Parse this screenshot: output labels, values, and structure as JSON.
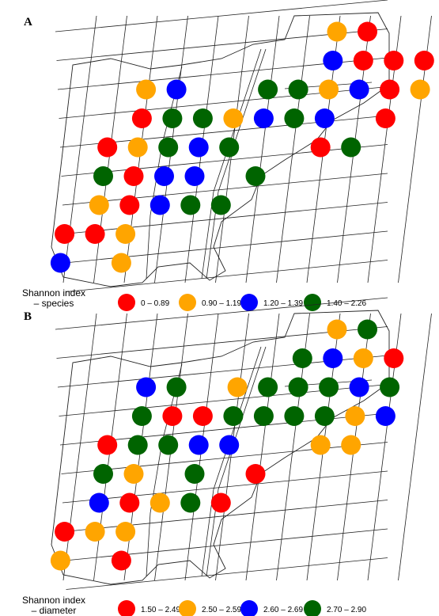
{
  "colors": {
    "red": "#ff0000",
    "orange": "#ffa500",
    "blue": "#0000ff",
    "green": "#006400"
  },
  "panel_a": {
    "letter": "A",
    "legend_title_line1": "Shannon index",
    "legend_title_line2": "– species",
    "legend": [
      {
        "label": "0 – 0.89",
        "color": "red"
      },
      {
        "label": "0.90 – 1.19",
        "color": "orange"
      },
      {
        "label": "1.20 – 1.39",
        "color": "blue"
      },
      {
        "label": "1.40 – 2.26",
        "color": "green"
      }
    ],
    "plots": [
      {
        "class": "orange",
        "row": 0,
        "col": 0
      },
      {
        "class": "red",
        "row": 0,
        "col": 1
      },
      {
        "class": "blue",
        "row": 1,
        "col": 0
      },
      {
        "class": "red",
        "row": 1,
        "col": 1
      },
      {
        "class": "red",
        "row": 1,
        "col": 2
      },
      {
        "class": "red",
        "row": 1,
        "col": 3
      },
      {
        "class": "orange",
        "row": 2,
        "col": 0
      },
      {
        "class": "blue",
        "row": 2,
        "col": 1
      },
      {
        "class": "red",
        "row": 2,
        "col": 2
      },
      {
        "class": "orange",
        "row": 2,
        "col": 3
      },
      {
        "class": "green",
        "row": 2,
        "col": -2
      },
      {
        "class": "green",
        "row": 2,
        "col": -1
      },
      {
        "class": "orange",
        "row": 2,
        "col": -6
      },
      {
        "class": "blue",
        "row": 2,
        "col": -5
      },
      {
        "class": "orange",
        "row": 3,
        "col": -3
      },
      {
        "class": "blue",
        "row": 3,
        "col": -2
      },
      {
        "class": "green",
        "row": 3,
        "col": -1
      },
      {
        "class": "blue",
        "row": 3,
        "col": 0
      },
      {
        "class": "red",
        "row": 3,
        "col": 2
      },
      {
        "class": "red",
        "row": 3,
        "col": -6
      },
      {
        "class": "green",
        "row": 3,
        "col": -5
      },
      {
        "class": "green",
        "row": 3,
        "col": -4
      },
      {
        "class": "red",
        "row": 4,
        "col": 0
      },
      {
        "class": "green",
        "row": 4,
        "col": 1
      },
      {
        "class": "red",
        "row": 4,
        "col": -7
      },
      {
        "class": "orange",
        "row": 4,
        "col": -6
      },
      {
        "class": "green",
        "row": 4,
        "col": -5
      },
      {
        "class": "blue",
        "row": 4,
        "col": -4
      },
      {
        "class": "green",
        "row": 4,
        "col": -3
      },
      {
        "class": "green",
        "row": 5,
        "col": -7
      },
      {
        "class": "red",
        "row": 5,
        "col": -6
      },
      {
        "class": "blue",
        "row": 5,
        "col": -5
      },
      {
        "class": "blue",
        "row": 5,
        "col": -4
      },
      {
        "class": "green",
        "row": 5,
        "col": -2
      },
      {
        "class": "orange",
        "row": 6,
        "col": -7
      },
      {
        "class": "red",
        "row": 6,
        "col": -6
      },
      {
        "class": "blue",
        "row": 6,
        "col": -5
      },
      {
        "class": "green",
        "row": 6,
        "col": -4
      },
      {
        "class": "green",
        "row": 6,
        "col": -3
      },
      {
        "class": "red",
        "row": 7,
        "col": -8
      },
      {
        "class": "red",
        "row": 7,
        "col": -7
      },
      {
        "class": "orange",
        "row": 7,
        "col": -6
      },
      {
        "class": "blue",
        "row": 8,
        "col": -8
      },
      {
        "class": "orange",
        "row": 8,
        "col": -6
      }
    ]
  },
  "panel_b": {
    "letter": "B",
    "legend_title_line1": "Shannon index",
    "legend_title_line2": "– diameter",
    "legend": [
      {
        "label": "1.50 – 2.49",
        "color": "red"
      },
      {
        "label": "2.50 – 2.59",
        "color": "orange"
      },
      {
        "label": "2.60 – 2.69",
        "color": "blue"
      },
      {
        "label": "2.70 – 2.90",
        "color": "green"
      }
    ],
    "plots": [
      {
        "class": "orange",
        "row": 0,
        "col": 0
      },
      {
        "class": "green",
        "row": 0,
        "col": 1
      },
      {
        "class": "green",
        "row": 1,
        "col": -1
      },
      {
        "class": "blue",
        "row": 1,
        "col": 0
      },
      {
        "class": "orange",
        "row": 1,
        "col": 1
      },
      {
        "class": "red",
        "row": 1,
        "col": 2
      },
      {
        "class": "blue",
        "row": 2,
        "col": -6
      },
      {
        "class": "green",
        "row": 2,
        "col": -5
      },
      {
        "class": "orange",
        "row": 2,
        "col": -3
      },
      {
        "class": "green",
        "row": 2,
        "col": -2
      },
      {
        "class": "green",
        "row": 2,
        "col": -1
      },
      {
        "class": "green",
        "row": 2,
        "col": 0
      },
      {
        "class": "blue",
        "row": 2,
        "col": 1
      },
      {
        "class": "green",
        "row": 2,
        "col": 2
      },
      {
        "class": "green",
        "row": 3,
        "col": -6
      },
      {
        "class": "red",
        "row": 3,
        "col": -5
      },
      {
        "class": "red",
        "row": 3,
        "col": -4
      },
      {
        "class": "green",
        "row": 3,
        "col": -3
      },
      {
        "class": "green",
        "row": 3,
        "col": -2
      },
      {
        "class": "green",
        "row": 3,
        "col": -1
      },
      {
        "class": "green",
        "row": 3,
        "col": 0
      },
      {
        "class": "orange",
        "row": 3,
        "col": 1
      },
      {
        "class": "blue",
        "row": 3,
        "col": 2
      },
      {
        "class": "red",
        "row": 4,
        "col": -7
      },
      {
        "class": "green",
        "row": 4,
        "col": -6
      },
      {
        "class": "green",
        "row": 4,
        "col": -5
      },
      {
        "class": "blue",
        "row": 4,
        "col": -4
      },
      {
        "class": "blue",
        "row": 4,
        "col": -3
      },
      {
        "class": "orange",
        "row": 4,
        "col": 0
      },
      {
        "class": "orange",
        "row": 4,
        "col": 1
      },
      {
        "class": "green",
        "row": 5,
        "col": -7
      },
      {
        "class": "orange",
        "row": 5,
        "col": -6
      },
      {
        "class": "green",
        "row": 5,
        "col": -4
      },
      {
        "class": "red",
        "row": 5,
        "col": -2
      },
      {
        "class": "blue",
        "row": 6,
        "col": -7
      },
      {
        "class": "red",
        "row": 6,
        "col": -6
      },
      {
        "class": "orange",
        "row": 6,
        "col": -5
      },
      {
        "class": "green",
        "row": 6,
        "col": -4
      },
      {
        "class": "red",
        "row": 6,
        "col": -3
      },
      {
        "class": "red",
        "row": 7,
        "col": -8
      },
      {
        "class": "orange",
        "row": 7,
        "col": -7
      },
      {
        "class": "orange",
        "row": 7,
        "col": -6
      },
      {
        "class": "orange",
        "row": 8,
        "col": -8
      },
      {
        "class": "red",
        "row": 8,
        "col": -6
      }
    ]
  }
}
